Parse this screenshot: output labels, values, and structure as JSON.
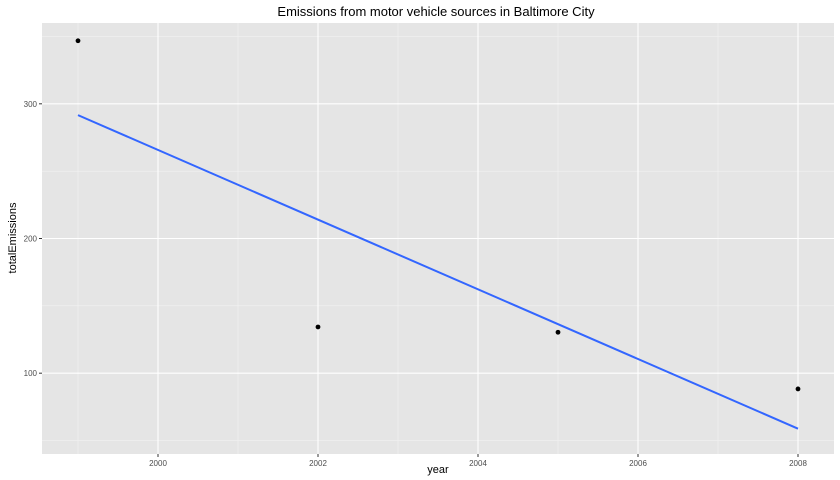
{
  "chart_data": {
    "type": "scatter",
    "title": "Emissions from motor vehicle sources in Baltimore City",
    "xlabel": "year",
    "ylabel": "totalEmissions",
    "xlim": [
      1998.55,
      2008.45
    ],
    "ylim": [
      40,
      360
    ],
    "x_ticks": [
      2000,
      2002,
      2004,
      2006,
      2008
    ],
    "x_tick_labels": [
      "2000",
      "2002",
      "2004",
      "2006",
      "2008"
    ],
    "y_ticks": [
      100,
      200,
      300
    ],
    "y_tick_labels": [
      "100",
      "200",
      "300"
    ],
    "grid": true,
    "points": [
      {
        "x": 1999,
        "y": 346.8
      },
      {
        "x": 2002,
        "y": 134.3
      },
      {
        "x": 2005,
        "y": 130.4
      },
      {
        "x": 2008,
        "y": 88.3
      }
    ],
    "trend_line": {
      "x": [
        1999,
        2008
      ],
      "y": [
        291.6,
        58.8
      ]
    },
    "colors": {
      "points": "#000000",
      "trend_line": "#3366ff",
      "panel": "#e5e5e5"
    }
  }
}
